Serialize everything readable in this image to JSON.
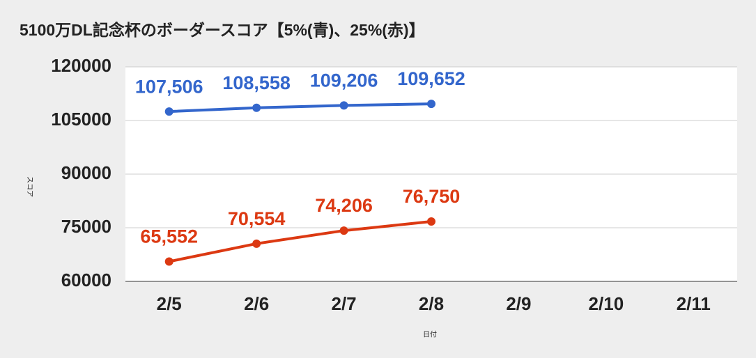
{
  "chart_data": {
    "type": "line",
    "title": "5100万DL記念杯のボーダースコア【5%(青)、25%(赤)】",
    "x_label": "日付",
    "y_label": "スコア",
    "categories": [
      "2/5",
      "2/6",
      "2/7",
      "2/8",
      "2/9",
      "2/10",
      "2/11"
    ],
    "series": [
      {
        "color": "#3366cc",
        "values": [
          107506,
          108558,
          109206,
          109652,
          null,
          null,
          null
        ],
        "value_labels": [
          "107,506",
          "108,558",
          "109,206",
          "109,652",
          null,
          null,
          null
        ]
      },
      {
        "color": "#dc3912",
        "values": [
          65552,
          70554,
          74206,
          76750,
          null,
          null,
          null
        ],
        "value_labels": [
          "65,552",
          "70,554",
          "74,206",
          "76,750",
          null,
          null,
          null
        ]
      }
    ],
    "ylim": [
      60000,
      120000
    ],
    "yticks": [
      60000,
      75000,
      90000,
      105000,
      120000
    ],
    "grid": true
  }
}
